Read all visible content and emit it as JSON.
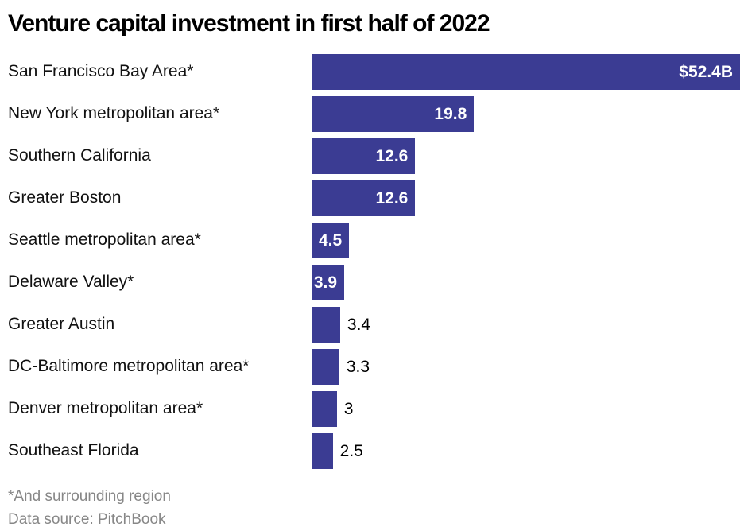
{
  "chart_data": {
    "type": "bar",
    "orientation": "horizontal",
    "title": "Venture capital investment in first half of 2022",
    "categories": [
      "San Francisco Bay Area*",
      "New York metropolitan area*",
      "Southern California",
      "Greater Boston",
      "Seattle metropolitan area*",
      "Delaware Valley*",
      "Greater Austin",
      "DC-Baltimore metropolitan area*",
      "Denver metropolitan area*",
      "Southeast Florida"
    ],
    "values": [
      52.4,
      19.8,
      12.6,
      12.6,
      4.5,
      3.9,
      3.4,
      3.3,
      3,
      2.5
    ],
    "value_labels": [
      "$52.4B",
      "19.8",
      "12.6",
      "12.6",
      "4.5",
      "3.9",
      "3.4",
      "3.3",
      "3",
      "2.5"
    ],
    "label_inside": [
      true,
      true,
      true,
      true,
      true,
      true,
      false,
      false,
      false,
      false
    ],
    "xlim": [
      0,
      52.4
    ],
    "xlabel": "",
    "ylabel": "",
    "grid": false,
    "legend": false,
    "footnote": "*And surrounding region",
    "source": "Data source: PitchBook"
  },
  "colors": {
    "bar": "#3b3c93",
    "value_inside": "#ffffff",
    "value_outside": "#000000",
    "title": "#000000",
    "category_label": "#111111",
    "footer": "#878787",
    "background": "#ffffff"
  }
}
